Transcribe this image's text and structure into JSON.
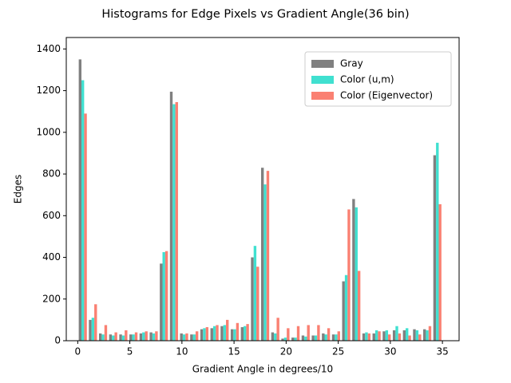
{
  "chart_data": {
    "type": "histogram",
    "title": "Histograms for Edge Pixels vs Gradient Angle(36 bin)",
    "xlabel": "Gradient Angle in degrees/10",
    "ylabel": "Edges",
    "bins": [
      0,
      0.972,
      1.944,
      2.917,
      3.889,
      4.861,
      5.833,
      6.806,
      7.778,
      8.75,
      9.722,
      10.694,
      11.667,
      12.639,
      13.611,
      14.583,
      15.556,
      16.528,
      17.5,
      18.472,
      19.444,
      20.417,
      21.389,
      22.361,
      23.333,
      24.306,
      25.278,
      26.25,
      27.222,
      28.194,
      29.167,
      30.139,
      31.111,
      32.083,
      33.056,
      34.028,
      35
    ],
    "series": [
      {
        "name": "Gray",
        "color": "#808080",
        "values": [
          1350,
          100,
          35,
          30,
          30,
          30,
          35,
          40,
          370,
          1195,
          35,
          30,
          55,
          60,
          70,
          55,
          65,
          400,
          830,
          40,
          10,
          15,
          25,
          25,
          35,
          30,
          285,
          680,
          35,
          35,
          45,
          50,
          50,
          55,
          55,
          890
        ]
      },
      {
        "name": "Color (u,m)",
        "color": "#40e0d0",
        "values": [
          1250,
          110,
          30,
          25,
          25,
          30,
          40,
          35,
          425,
          1135,
          30,
          30,
          60,
          70,
          75,
          55,
          70,
          455,
          750,
          35,
          15,
          15,
          20,
          25,
          30,
          30,
          315,
          640,
          40,
          50,
          50,
          70,
          60,
          50,
          50,
          950
        ]
      },
      {
        "name": "Color (Eigenvector)",
        "color": "#fa8072",
        "values": [
          1090,
          175,
          75,
          40,
          50,
          40,
          45,
          45,
          430,
          1145,
          35,
          45,
          65,
          75,
          100,
          85,
          80,
          355,
          815,
          110,
          60,
          70,
          75,
          75,
          60,
          45,
          630,
          335,
          35,
          45,
          30,
          35,
          25,
          30,
          70,
          655
        ]
      }
    ],
    "xlim": [
      -1.1,
      36.6
    ],
    "xticks": [
      0,
      5,
      10,
      15,
      20,
      25,
      30,
      35
    ],
    "ylim": [
      0,
      1455
    ],
    "yticks": [
      0,
      200,
      400,
      600,
      800,
      1000,
      1200,
      1400
    ],
    "grid": false,
    "legend": "upper right"
  }
}
